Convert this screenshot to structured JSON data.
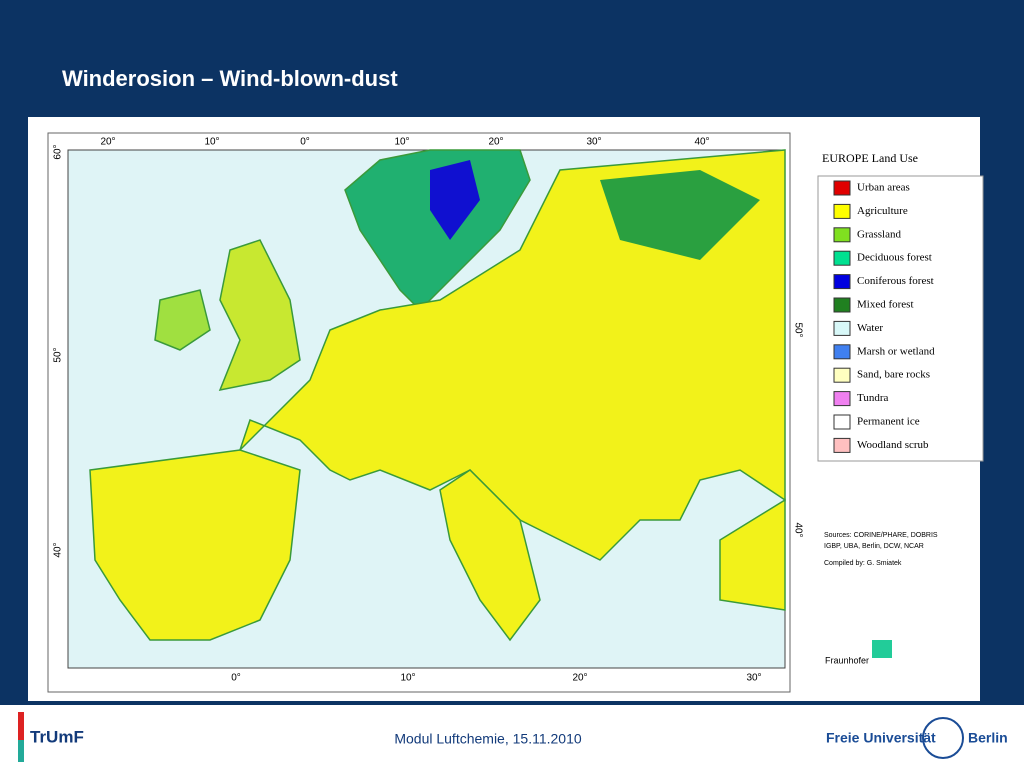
{
  "header": {
    "title": "Winderosion – Wind-blown-dust"
  },
  "map": {
    "top_labels": [
      "20°",
      "10°",
      "0°",
      "10°",
      "20°",
      "30°",
      "40°"
    ],
    "bottom_labels": [
      "0°",
      "10°",
      "20°",
      "30°"
    ],
    "left_labels": [
      "60°",
      "50°",
      "40°"
    ],
    "right_labels": [
      "50°",
      "40°"
    ],
    "legend": {
      "title": "EUROPE Land Use",
      "items": [
        {
          "label": "Urban areas",
          "color": "#e00000"
        },
        {
          "label": "Agriculture",
          "color": "#ffff00"
        },
        {
          "label": "Grassland",
          "color": "#80e020"
        },
        {
          "label": "Deciduous forest",
          "color": "#00e090"
        },
        {
          "label": "Coniferous forest",
          "color": "#0000e0"
        },
        {
          "label": "Mixed forest",
          "color": "#208020"
        },
        {
          "label": "Water",
          "color": "#d8f8f8"
        },
        {
          "label": "Marsh or wetland",
          "color": "#4080f0"
        },
        {
          "label": "Sand, bare rocks",
          "color": "#ffffc0"
        },
        {
          "label": "Tundra",
          "color": "#f080f0"
        },
        {
          "label": "Permanent ice",
          "color": "#ffffff"
        },
        {
          "label": "Woodland scrub",
          "color": "#ffc0c0"
        }
      ]
    },
    "sources": [
      "Sources: CORINE/PHARE, DOBRIS",
      "IGBP, UBA, Berlin, DCW, NCAR",
      "Compiled by: G. Smiatek"
    ],
    "institute": "Fraunhofer"
  },
  "footer": {
    "left_logo": "TrUmF",
    "center": "Modul Luftchemie, 15.11.2010",
    "right_logo": "Freie Universität",
    "right_city": "Berlin"
  }
}
